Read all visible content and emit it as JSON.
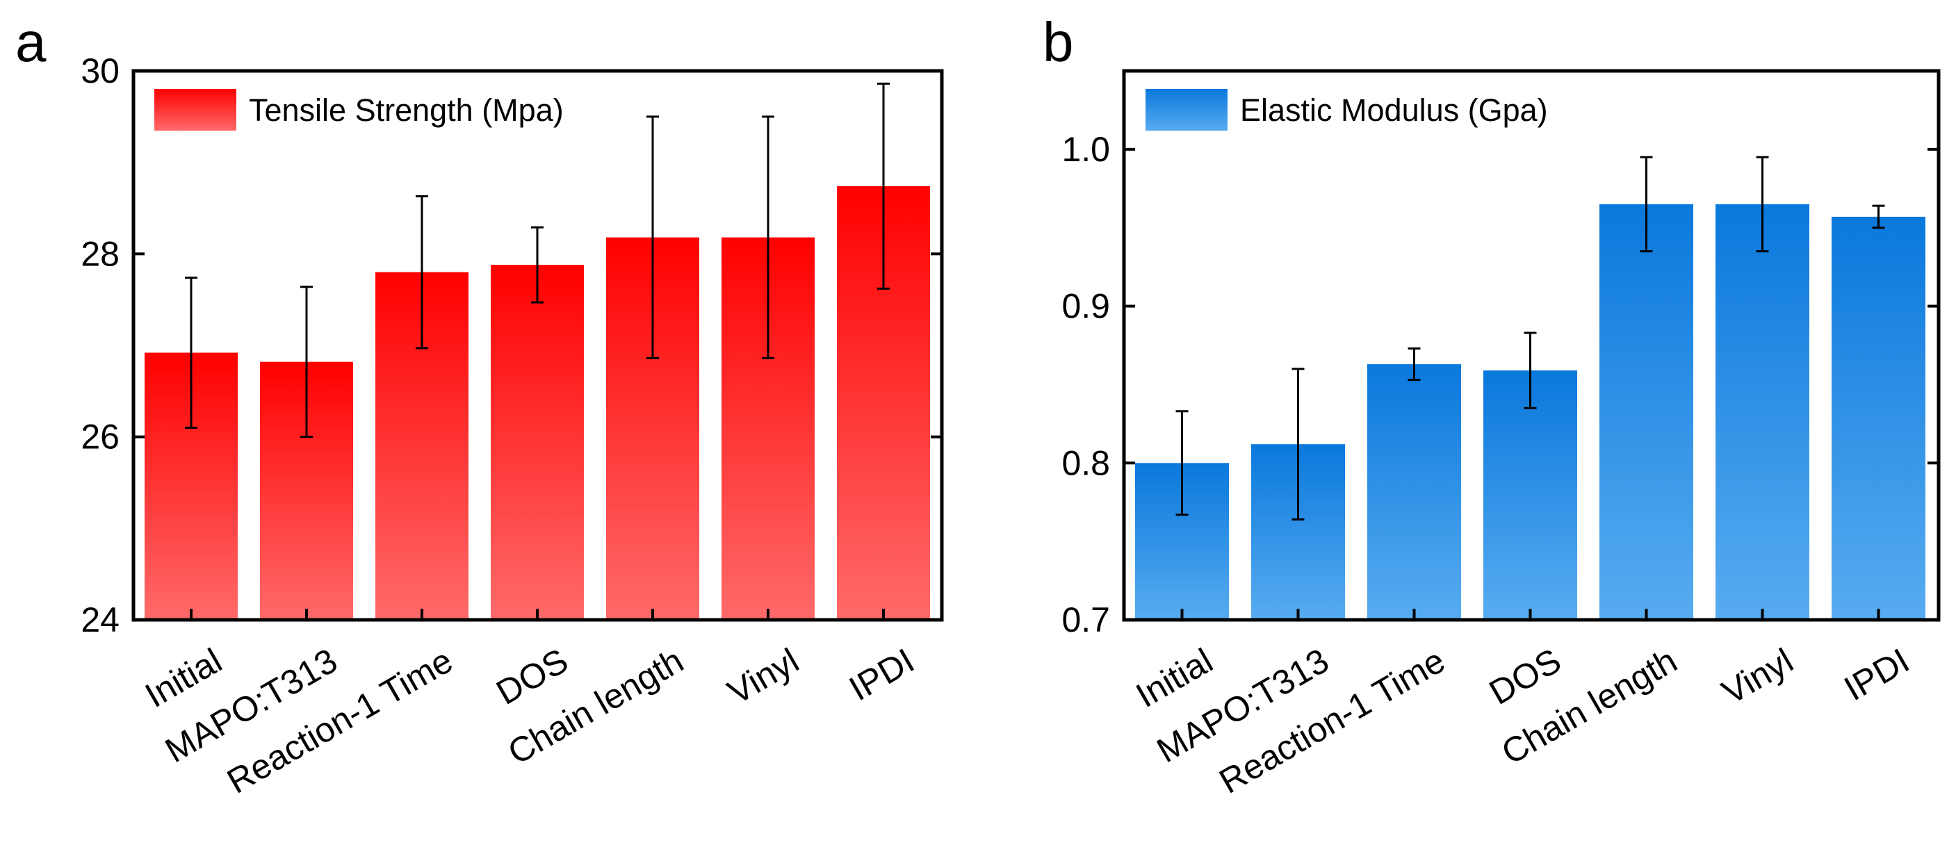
{
  "chart_data": [
    {
      "panel": "a",
      "type": "bar",
      "legend": "Tensile Strength (Mpa)",
      "legend_position": "top-left",
      "categories": [
        "Initial",
        "MAPO:T313",
        "Reaction-1 Time",
        "DOS",
        "Chain length",
        "Vinyl",
        "IPDI"
      ],
      "values": [
        26.92,
        26.82,
        27.8,
        27.88,
        28.18,
        28.18,
        28.74
      ],
      "errors": [
        0.82,
        0.82,
        0.83,
        0.41,
        1.32,
        1.32,
        1.12
      ],
      "ylim": [
        24,
        30
      ],
      "yticks": [
        24,
        26,
        28,
        30
      ],
      "ytick_labels": [
        "24",
        "26",
        "28",
        "30"
      ],
      "xlabel": "",
      "ylabel": "",
      "grid": false,
      "color_top": "#ff0000",
      "color_bottom": "#ff6a6a"
    },
    {
      "panel": "b",
      "type": "bar",
      "legend": "Elastic Modulus (Gpa)",
      "legend_position": "top-left",
      "categories": [
        "Initial",
        "MAPO:T313",
        "Reaction-1 Time",
        "DOS",
        "Chain length",
        "Vinyl",
        "IPDI"
      ],
      "values": [
        0.8,
        0.812,
        0.863,
        0.859,
        0.965,
        0.965,
        0.957
      ],
      "errors": [
        0.033,
        0.048,
        0.01,
        0.024,
        0.03,
        0.03,
        0.007
      ],
      "ylim": [
        0.7,
        1.05
      ],
      "yticks": [
        0.7,
        0.8,
        0.9,
        1.0
      ],
      "ytick_labels": [
        "0.7",
        "0.8",
        "0.9",
        "1.0"
      ],
      "xlabel": "",
      "ylabel": "",
      "grid": false,
      "color_top": "#0a78dc",
      "color_bottom": "#58acf0"
    }
  ]
}
